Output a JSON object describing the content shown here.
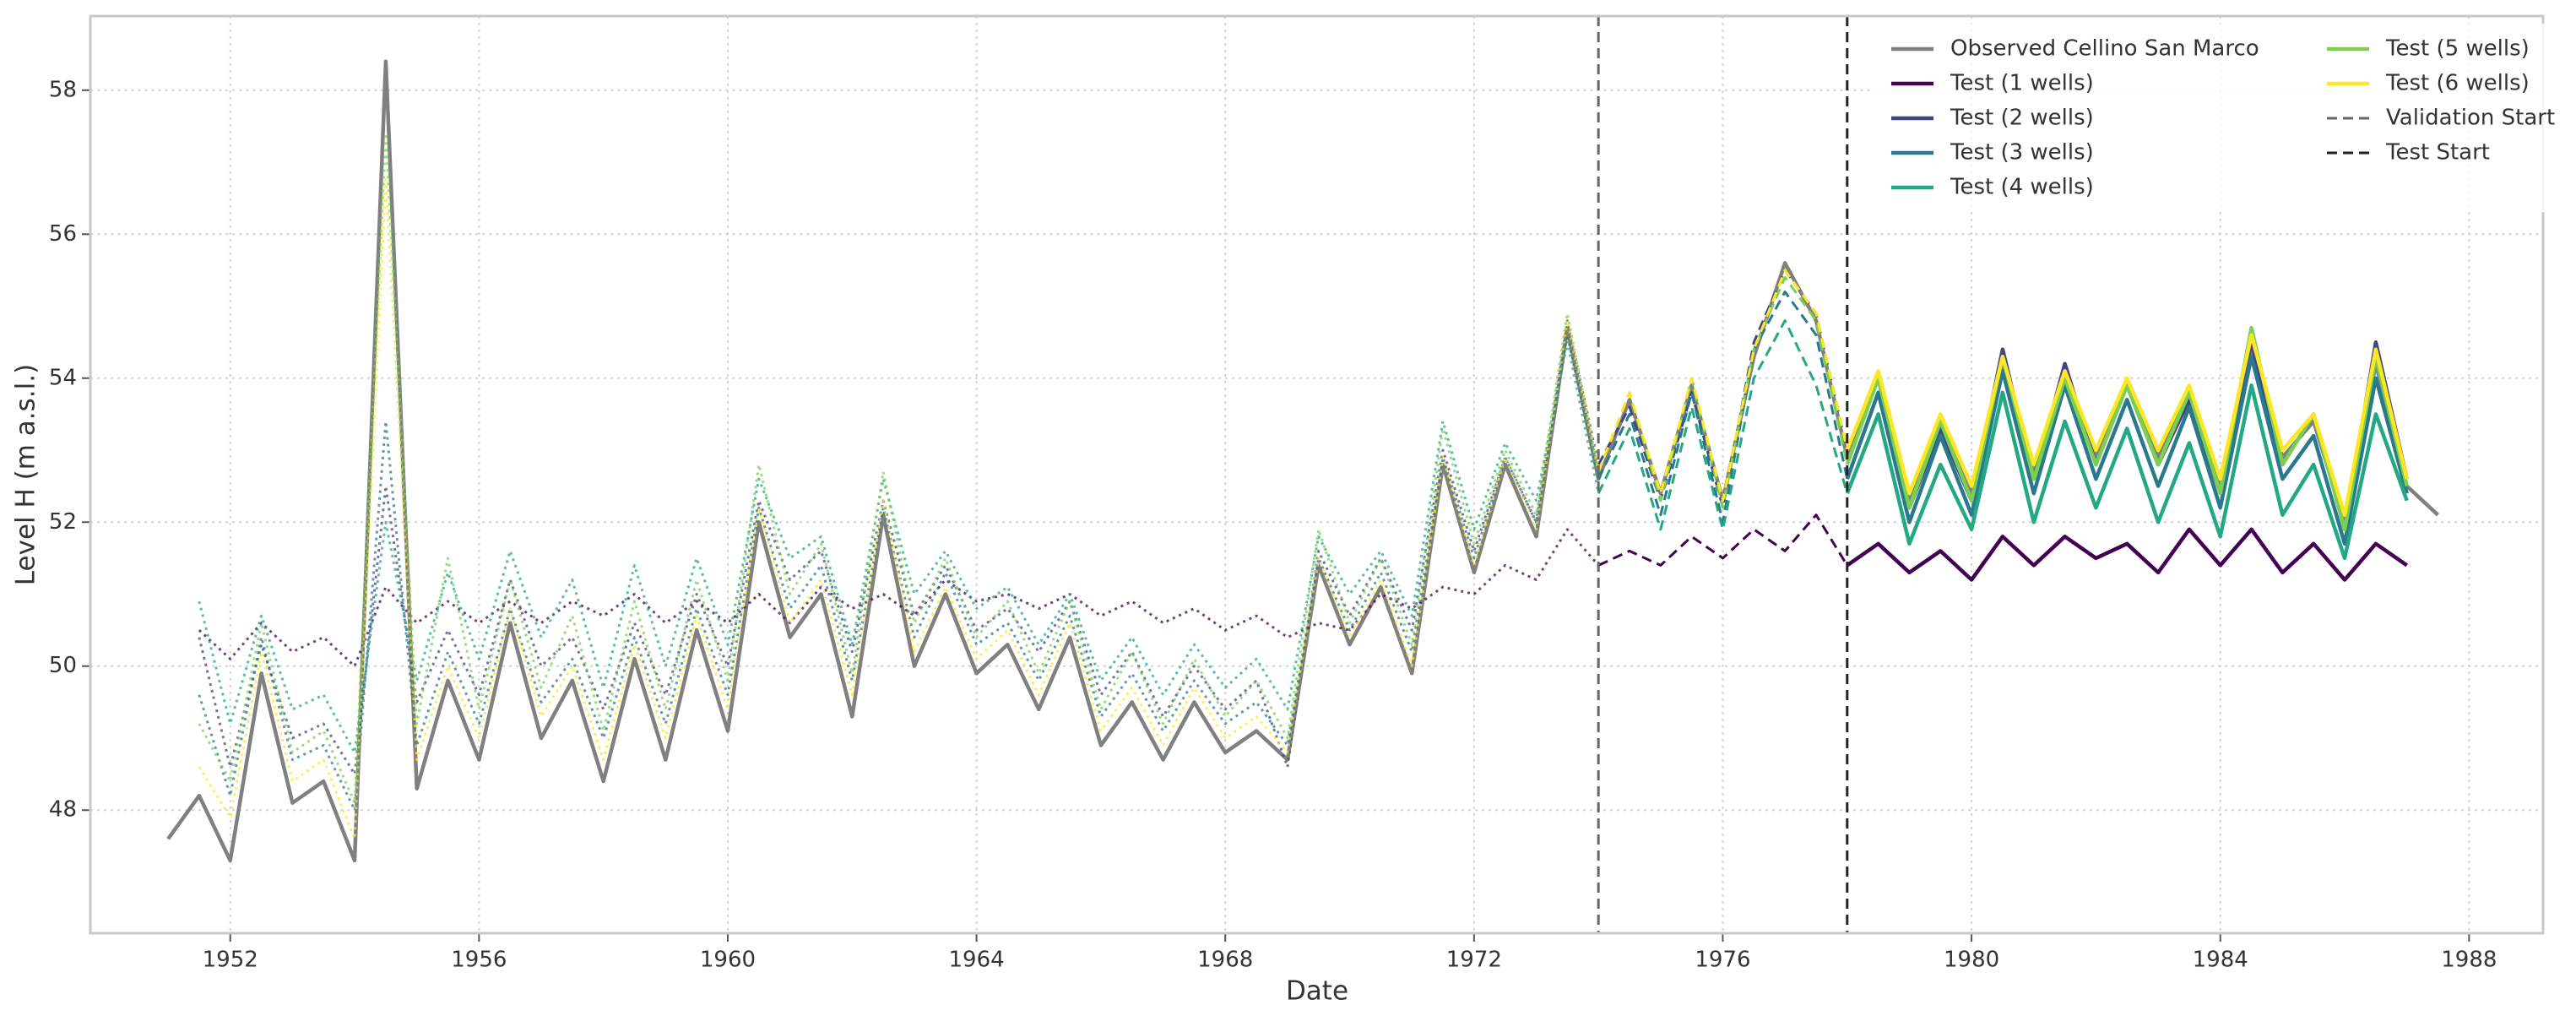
{
  "chart_data": {
    "type": "line",
    "x_label": "Date",
    "y_label": "Level H (m a.s.l.)",
    "xlim": [
      1949.75,
      1989.19
    ],
    "ylim": [
      46.29,
      59.03
    ],
    "xticks": [
      1952,
      1956,
      1960,
      1964,
      1968,
      1972,
      1976,
      1980,
      1984,
      1988
    ],
    "yticks": [
      48,
      50,
      52,
      54,
      56,
      58
    ],
    "grid": true,
    "legend": {
      "loc": "upper right",
      "ncol": 2
    },
    "period_styles": [
      "dotted",
      "dashed",
      "solid"
    ],
    "vlines": [
      {
        "name": "Validation Start",
        "x": 1974,
        "color": "#666666"
      },
      {
        "name": "Test Start",
        "x": 1978,
        "color": "#222222"
      }
    ],
    "x": [
      1951,
      1951.5,
      1952,
      1952.5,
      1953,
      1953.5,
      1954,
      1954.5,
      1955,
      1955.5,
      1956,
      1956.5,
      1957,
      1957.5,
      1958,
      1958.5,
      1959,
      1959.5,
      1960,
      1960.5,
      1961,
      1961.5,
      1962,
      1962.5,
      1963,
      1963.5,
      1964,
      1964.5,
      1965,
      1965.5,
      1966,
      1966.5,
      1967,
      1967.5,
      1968,
      1968.5,
      1969,
      1969.5,
      1970,
      1970.5,
      1971,
      1971.5,
      1972,
      1972.5,
      1973,
      1973.5,
      1974,
      1974.5,
      1975,
      1975.5,
      1976,
      1976.5,
      1977,
      1977.5,
      1978,
      1978.5,
      1979,
      1979.5,
      1980,
      1980.5,
      1981,
      1981.5,
      1982,
      1982.5,
      1983,
      1983.5,
      1984,
      1984.5,
      1985,
      1985.5,
      1986,
      1986.5,
      1987,
      1987.5
    ],
    "series": [
      {
        "name": "Observed Cellino San Marco",
        "color": "#808080",
        "linestyle": "solid",
        "values": [
          47.6,
          48.2,
          47.3,
          49.9,
          48.1,
          48.4,
          47.3,
          58.4,
          48.3,
          49.8,
          48.7,
          50.6,
          49.0,
          49.8,
          48.4,
          50.1,
          48.7,
          50.5,
          49.1,
          52.0,
          50.4,
          51.0,
          49.3,
          52.1,
          50.0,
          51.0,
          49.9,
          50.3,
          49.4,
          50.4,
          48.9,
          49.5,
          48.7,
          49.5,
          48.8,
          49.1,
          48.7,
          51.4,
          50.3,
          51.1,
          49.9,
          52.8,
          51.3,
          52.8,
          51.8,
          54.7,
          52.6,
          53.7,
          52.4,
          53.9,
          52.3,
          54.3,
          55.6,
          54.8,
          52.9,
          54.0,
          52.3,
          53.4,
          52.4,
          54.2,
          52.7,
          54.0,
          52.9,
          53.9,
          52.9,
          53.8,
          52.5,
          54.4,
          52.9,
          53.4,
          52.0,
          54.2,
          52.5,
          52.1
        ]
      },
      {
        "name": "Test (1 wells)",
        "color": "#440154",
        "linestyle": "by_period",
        "values": [
          null,
          50.5,
          50.1,
          50.6,
          50.2,
          50.4,
          50.0,
          51.1,
          50.6,
          50.9,
          50.6,
          50.9,
          50.6,
          50.9,
          50.7,
          51.0,
          50.6,
          50.9,
          50.6,
          51.0,
          50.6,
          51.1,
          50.8,
          51.0,
          50.7,
          51.2,
          50.9,
          51.0,
          50.8,
          51.0,
          50.7,
          50.9,
          50.6,
          50.8,
          50.5,
          50.7,
          50.4,
          50.6,
          50.5,
          51.0,
          50.8,
          51.1,
          51.0,
          51.4,
          51.2,
          51.9,
          51.4,
          51.6,
          51.4,
          51.8,
          51.5,
          51.9,
          51.6,
          52.1,
          51.4,
          51.7,
          51.3,
          51.6,
          51.2,
          51.8,
          51.4,
          51.8,
          51.5,
          51.7,
          51.3,
          51.9,
          51.4,
          51.9,
          51.3,
          51.7,
          51.2,
          51.7,
          51.4,
          null
        ]
      },
      {
        "name": "Test (2 wells)",
        "color": "#414487",
        "linestyle": "by_period",
        "values": [
          null,
          50.4,
          48.6,
          50.3,
          49.0,
          49.2,
          48.5,
          52.5,
          49.5,
          50.5,
          49.6,
          51.2,
          50.0,
          50.4,
          49.4,
          50.6,
          49.6,
          51.0,
          50.0,
          52.3,
          51.2,
          51.6,
          50.2,
          52.3,
          50.7,
          51.4,
          50.5,
          50.8,
          50.2,
          50.9,
          49.6,
          50.2,
          49.3,
          50.0,
          49.4,
          49.8,
          48.6,
          51.6,
          50.7,
          51.5,
          50.5,
          53.0,
          51.6,
          52.9,
          52.0,
          54.8,
          52.8,
          53.6,
          52.3,
          53.8,
          52.2,
          54.5,
          55.5,
          54.9,
          53.0,
          54.0,
          52.2,
          53.3,
          52.3,
          54.4,
          52.6,
          54.2,
          52.8,
          53.9,
          52.8,
          53.7,
          52.4,
          54.5,
          52.8,
          53.5,
          51.9,
          54.5,
          52.6,
          null
        ]
      },
      {
        "name": "Test (3 wells)",
        "color": "#2a788e",
        "linestyle": "by_period",
        "values": [
          null,
          49.6,
          48.2,
          50.4,
          48.7,
          48.9,
          48.0,
          53.4,
          48.9,
          50.2,
          49.2,
          50.8,
          49.5,
          50.1,
          49.0,
          50.4,
          49.2,
          50.8,
          49.6,
          52.2,
          50.8,
          51.4,
          49.8,
          52.2,
          50.4,
          51.3,
          50.3,
          50.6,
          49.8,
          50.7,
          49.3,
          49.9,
          49.1,
          49.8,
          49.2,
          49.5,
          48.9,
          51.5,
          50.5,
          51.3,
          50.2,
          52.9,
          51.5,
          52.9,
          52.0,
          54.6,
          52.6,
          53.5,
          52.1,
          53.8,
          52.0,
          54.4,
          55.2,
          54.6,
          52.6,
          53.8,
          52.0,
          53.2,
          52.1,
          54.1,
          52.4,
          53.9,
          52.6,
          53.7,
          52.5,
          53.6,
          52.2,
          54.3,
          52.6,
          53.2,
          51.7,
          54.0,
          52.4,
          null
        ]
      },
      {
        "name": "Test (4 wells)",
        "color": "#22a884",
        "linestyle": "by_period",
        "values": [
          null,
          50.9,
          49.2,
          50.7,
          49.4,
          49.6,
          48.8,
          52.0,
          49.8,
          51.3,
          50.1,
          51.6,
          50.4,
          51.2,
          49.7,
          51.4,
          50.0,
          51.5,
          50.3,
          52.6,
          51.5,
          51.8,
          50.3,
          52.6,
          51.0,
          51.6,
          50.8,
          51.1,
          50.3,
          51.0,
          49.8,
          50.4,
          49.6,
          50.3,
          49.7,
          50.1,
          49.4,
          51.8,
          51.0,
          51.6,
          50.7,
          53.4,
          51.9,
          53.1,
          52.3,
          54.5,
          52.4,
          53.3,
          51.9,
          53.6,
          51.9,
          54.0,
          54.8,
          53.9,
          52.4,
          53.5,
          51.7,
          52.8,
          51.9,
          53.8,
          52.0,
          53.4,
          52.2,
          53.3,
          52.0,
          53.1,
          51.8,
          53.9,
          52.1,
          52.8,
          51.5,
          53.5,
          52.3,
          null
        ]
      },
      {
        "name": "Test (5 wells)",
        "color": "#7ad151",
        "linestyle": "by_period",
        "values": [
          null,
          49.2,
          48.4,
          50.6,
          48.8,
          49.1,
          48.1,
          57.4,
          49.2,
          51.5,
          49.4,
          51.2,
          49.7,
          50.7,
          49.1,
          50.9,
          49.4,
          51.2,
          49.8,
          52.8,
          51.0,
          51.7,
          49.9,
          52.7,
          50.6,
          51.5,
          50.4,
          50.9,
          49.9,
          50.9,
          49.4,
          50.2,
          49.2,
          50.1,
          49.3,
          49.8,
          49.0,
          51.9,
          50.6,
          51.5,
          50.3,
          53.3,
          51.7,
          53.0,
          52.1,
          54.9,
          52.7,
          53.8,
          52.3,
          54.0,
          52.2,
          54.4,
          55.4,
          54.8,
          52.8,
          54.0,
          52.2,
          53.4,
          52.3,
          54.3,
          52.6,
          54.0,
          52.8,
          53.9,
          52.8,
          53.8,
          52.4,
          54.7,
          52.8,
          53.5,
          51.9,
          54.3,
          52.5,
          null
        ]
      },
      {
        "name": "Test (6 wells)",
        "color": "#fde725",
        "linestyle": "by_period",
        "values": [
          null,
          48.6,
          47.9,
          50.2,
          48.4,
          48.7,
          47.6,
          56.8,
          48.7,
          50.0,
          49.0,
          50.8,
          49.3,
          50.0,
          48.7,
          50.3,
          49.0,
          50.7,
          49.4,
          52.2,
          50.6,
          51.2,
          49.6,
          52.3,
          50.2,
          51.1,
          50.1,
          50.5,
          49.6,
          50.6,
          49.1,
          49.7,
          48.9,
          49.7,
          49.0,
          49.3,
          48.8,
          51.5,
          50.4,
          51.2,
          50.0,
          52.9,
          51.4,
          52.9,
          51.9,
          54.8,
          52.7,
          53.8,
          52.4,
          54.0,
          52.3,
          54.4,
          55.5,
          54.9,
          53.0,
          54.1,
          52.4,
          53.5,
          52.5,
          54.3,
          52.8,
          54.1,
          53.0,
          54.0,
          53.0,
          53.9,
          52.6,
          54.6,
          53.0,
          53.5,
          52.1,
          54.4,
          52.6,
          null
        ]
      }
    ]
  }
}
